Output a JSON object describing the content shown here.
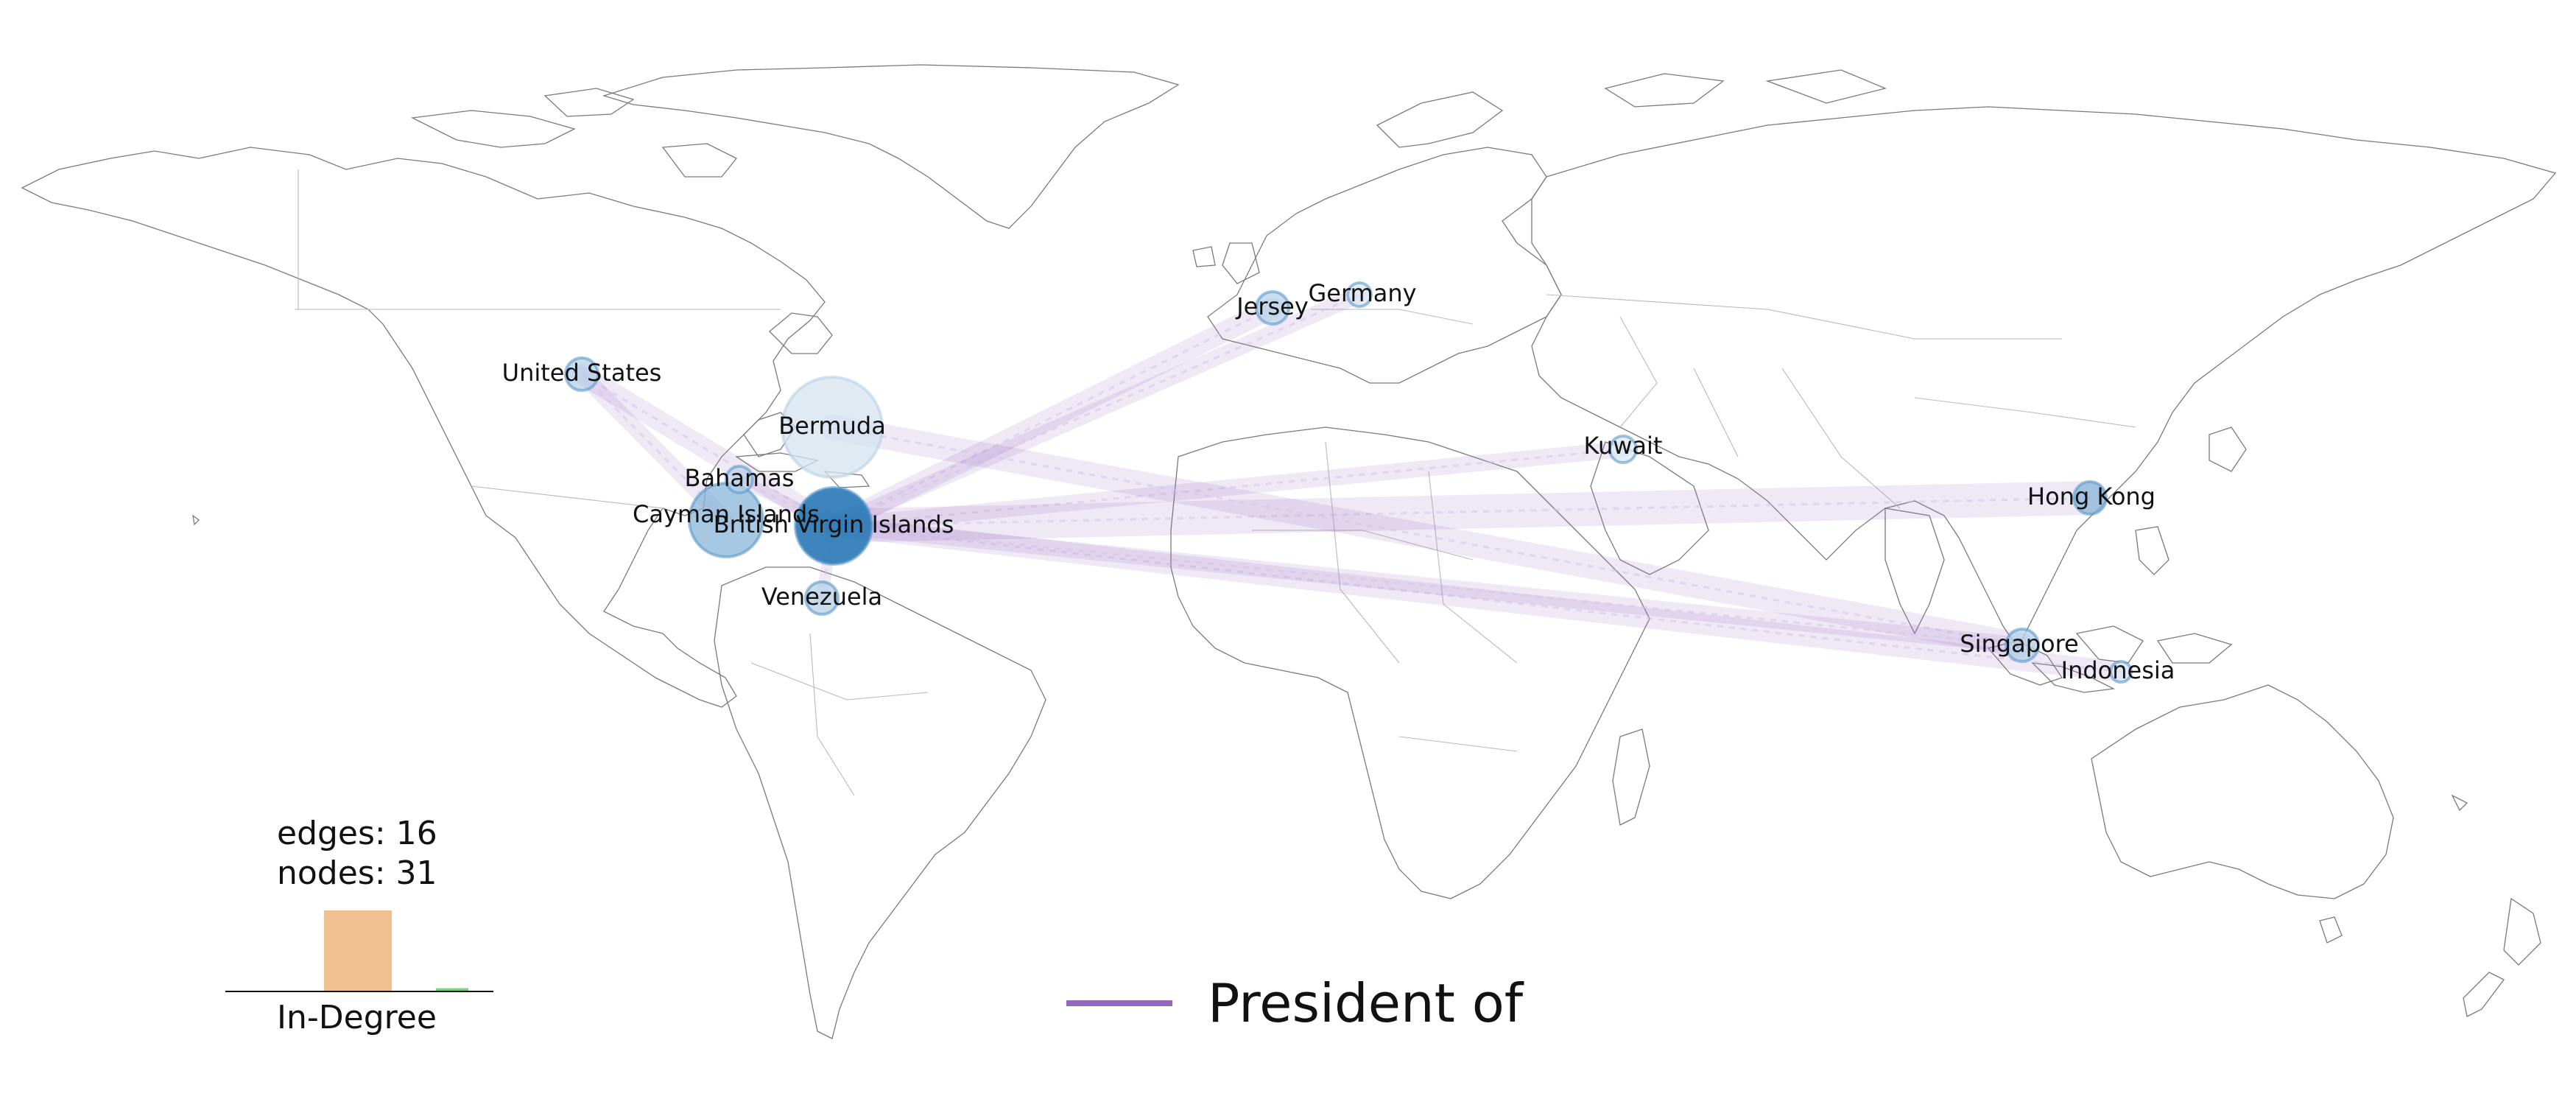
{
  "map": {
    "nodes": [
      {
        "id": "bvi",
        "label": "British Virgin Islands",
        "value": 10,
        "color": "#2c7bb6"
      },
      {
        "id": "bermuda",
        "label": "Bermuda",
        "value": 3,
        "color": "#d4e3ef"
      },
      {
        "id": "cayman",
        "label": "Cayman Islands",
        "value": 2,
        "color": "#8ab6d8"
      },
      {
        "id": "bahamas",
        "label": "Bahamas",
        "value": 1,
        "color": "#b7d2e8"
      },
      {
        "id": "us",
        "label": "United States",
        "value": 1,
        "color": "#b7d2e8"
      },
      {
        "id": "venezuela",
        "label": "Venezuela",
        "value": 1,
        "color": "#b7d2e8"
      },
      {
        "id": "jersey",
        "label": "Jersey",
        "value": 1,
        "color": "#b7d2e8"
      },
      {
        "id": "germany",
        "label": "Germany",
        "value": 1,
        "color": "#dbe8f3"
      },
      {
        "id": "kuwait",
        "label": "Kuwait",
        "value": 1,
        "color": "#dbe8f3"
      },
      {
        "id": "hongkong",
        "label": "Hong Kong",
        "value": 1,
        "color": "#8ab6d8"
      },
      {
        "id": "singapore",
        "label": "Singapore",
        "value": 1,
        "color": "#b7d2e8"
      },
      {
        "id": "indonesia",
        "label": "Indonesia",
        "value": 1,
        "color": "#dbe8f3"
      }
    ],
    "edges": [
      {
        "source": "us",
        "target": "bvi",
        "weight": 3
      },
      {
        "source": "us",
        "target": "cayman",
        "weight": 2
      },
      {
        "source": "jersey",
        "target": "bvi",
        "weight": 3
      },
      {
        "source": "germany",
        "target": "bvi",
        "weight": 2
      },
      {
        "source": "kuwait",
        "target": "bvi",
        "weight": 2
      },
      {
        "source": "hongkong",
        "target": "bvi",
        "weight": 6
      },
      {
        "source": "singapore",
        "target": "bermuda",
        "weight": 4
      },
      {
        "source": "indonesia",
        "target": "bvi",
        "weight": 3
      },
      {
        "source": "singapore",
        "target": "bvi",
        "weight": 2
      },
      {
        "source": "venezuela",
        "target": "bvi",
        "weight": 1
      },
      {
        "source": "bahamas",
        "target": "bvi",
        "weight": 1
      }
    ],
    "edge_color": "#9467bd",
    "node_color": "#1f77b4"
  },
  "stats": {
    "edges": "edges: 16",
    "nodes": "nodes: 31"
  },
  "histogram": {
    "label": "In-Degree",
    "bars": [
      {
        "value": 1.0,
        "color": "#f0c090"
      },
      {
        "value": 0.04,
        "color": "#7ccf7c"
      }
    ]
  },
  "legend": {
    "label": "President of",
    "color": "#9467bd"
  }
}
